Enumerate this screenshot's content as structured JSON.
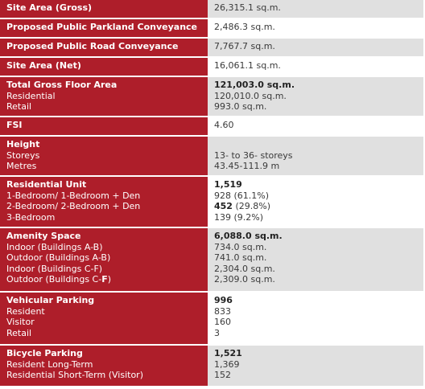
{
  "rows": {
    "site_gross": {
      "label": "Site Area (Gross)",
      "value": "26,315.1 sq.m."
    },
    "parkland": {
      "label": "Proposed Public Parkland Conveyance",
      "value": "2,486.3 sq.m."
    },
    "road": {
      "label": "Proposed Public Road Conveyance",
      "value": "7,767.7 sq.m."
    },
    "site_net": {
      "label": "Site Area (Net)",
      "value": "16,061.1 sq.m."
    },
    "gfa": {
      "label": "Total Gross Floor Area",
      "value": "121,003.0 sq.m.",
      "sub1": "Residential",
      "val1": "120,010.0 sq.m.",
      "sub2": "Retail",
      "val2": "993.0 sq.m."
    },
    "fsi": {
      "label": "FSI",
      "value": "4.60"
    },
    "height": {
      "label": "Height",
      "sub1": "Storeys",
      "val1": "13- to 36- storeys",
      "sub2": "Metres",
      "val2": "43.45-111.9 m"
    },
    "units": {
      "label": "Residential Unit",
      "value": "1,519",
      "sub1": "1-Bedroom/ 1-Bedroom + Den",
      "val1": "928 (61.1%)",
      "sub2": "2-Bedroom/ 2-Bedroom + Den",
      "val2a": "452",
      "val2b": " (29.8%)",
      "sub3": "3-Bedroom",
      "val3": "139 (9.2%)"
    },
    "amenity": {
      "label": "Amenity Space",
      "value": "6,088.0 sq.m.",
      "sub1": "Indoor (Buildings A-B)",
      "val1": "734.0 sq.m.",
      "sub2": "Outdoor (Buildings A-B)",
      "val2": "741.0 sq.m.",
      "sub3": "Indoor (Buildings C-F)",
      "val3": "2,304.0 sq.m.",
      "sub4a": "Outdoor (Buildings C-",
      "sub4b": "F",
      "sub4c": ")",
      "val4": "2,309.0 sq.m."
    },
    "vehicular": {
      "label": "Vehicular Parking",
      "value": "996",
      "sub1": "Resident",
      "val1": "833",
      "sub2": "Visitor",
      "val2": "160",
      "sub3": "Retail",
      "val3": "3"
    },
    "bicycle": {
      "label": "Bicycle Parking",
      "value": "1,521",
      "sub1": "Resident Long-Term",
      "val1": "1,369",
      "sub2": "Residential Short-Term (Visitor)",
      "val2": "152"
    }
  },
  "colors": {
    "label_bg": "#ae1e2a",
    "value_grey": "#e0e0e0",
    "value_white": "#ffffff"
  }
}
